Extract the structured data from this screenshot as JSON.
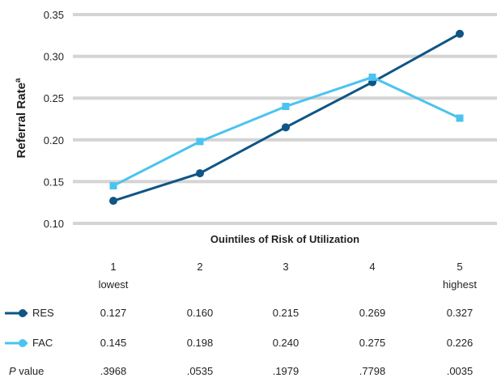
{
  "chart_data": {
    "type": "line",
    "categories": [
      "1",
      "2",
      "3",
      "4",
      "5"
    ],
    "category_sublabels": [
      "lowest",
      "",
      "",
      "",
      "highest"
    ],
    "series": [
      {
        "name": "RES",
        "values": [
          0.127,
          0.16,
          0.215,
          0.269,
          0.327
        ],
        "color": "#0f5585",
        "marker": "circle"
      },
      {
        "name": "FAC",
        "values": [
          0.145,
          0.198,
          0.24,
          0.275,
          0.226
        ],
        "color": "#4cc3ef",
        "marker": "square"
      }
    ],
    "ylabel": "Referral Rate",
    "ylabel_superscript": "a",
    "xlabel": "Quintiles of Risk of Utilization",
    "ylim": [
      0.1,
      0.35
    ],
    "yticks": [
      "0.10",
      "0.15",
      "0.20",
      "0.25",
      "0.30",
      "0.35"
    ],
    "grid": "horizontal"
  },
  "table": {
    "rows": [
      {
        "label": "RES",
        "values": [
          "0.127",
          "0.160",
          "0.215",
          "0.269",
          "0.327"
        ]
      },
      {
        "label": "FAC",
        "values": [
          "0.145",
          "0.198",
          "0.240",
          "0.275",
          "0.226"
        ]
      },
      {
        "label_italic": "P",
        "label_rest": " value",
        "values": [
          ".3968",
          ".0535",
          ".1979",
          ".7798",
          ".0035"
        ]
      }
    ]
  }
}
